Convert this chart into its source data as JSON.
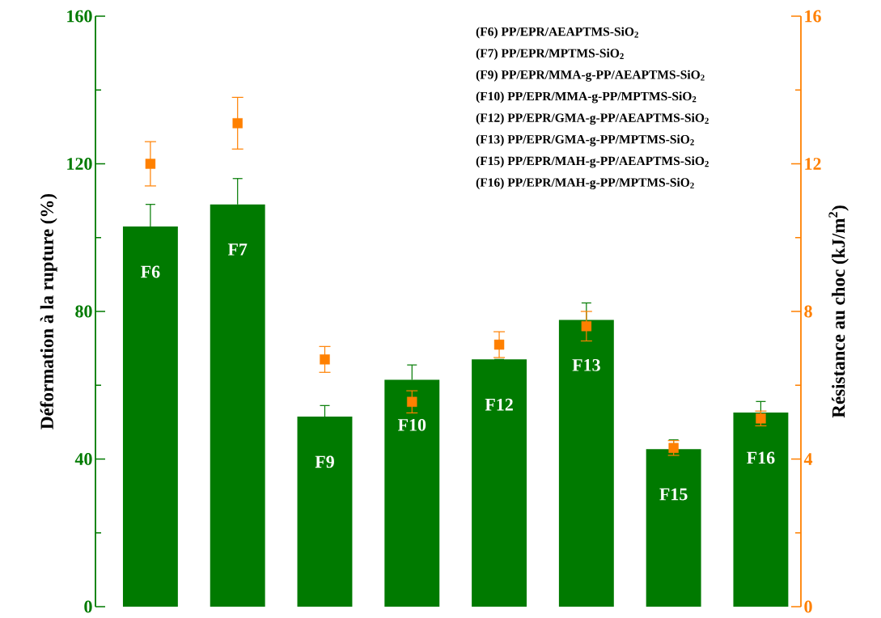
{
  "chart_data": {
    "type": "bar",
    "ylabel": "Déformation à la rupture  (%)",
    "y2label": "Résistance au choc (kJ/m$^{2}$)",
    "categories": [
      "F6",
      "F7",
      "F9",
      "F10",
      "F12",
      "F13",
      "F15",
      "F16"
    ],
    "ylim": [
      0,
      160
    ],
    "yticks": [
      0,
      40,
      80,
      120,
      160
    ],
    "y2lim": [
      0,
      16
    ],
    "y2ticks": [
      0,
      4,
      8,
      12,
      16
    ],
    "series": [
      {
        "color": "#007a00",
        "values": [
          103,
          109,
          51.5,
          61.5,
          67,
          77.7,
          42.7,
          52.6
        ],
        "errors": [
          6,
          7,
          3,
          4,
          null,
          4.6,
          2.5,
          3
        ]
      },
      {
        "type": "scatter",
        "axis": "y2",
        "marker": "square",
        "color": "#ff8000",
        "values": [
          12,
          13.1,
          6.7,
          5.55,
          7.1,
          7.6,
          4.3,
          5.1
        ],
        "errors": [
          0.6,
          0.7,
          0.35,
          0.3,
          0.35,
          0.4,
          0.2,
          0.2
        ]
      }
    ],
    "annotations": [
      "(F6)  PP/EPR/AEAPTMS-SiO$_{2}$",
      "(F7)  PP/EPR/MPTMS-SiO$_{2}$",
      "(F9)  PP/EPR/MMA-g-PP/AEAPTMS-SiO$_{2}$",
      "(F10)  PP/EPR/MMA-g-PP/MPTMS-SiO$_{2}$",
      "(F12)  PP/EPR/GMA-g-PP/AEAPTMS-SiO$_{2}$",
      "(F13)  PP/EPR/GMA-g-PP/MPTMS-SiO$_{2}$",
      "(F15)  PP/EPR/MAH-g-PP/AEAPTMS-SiO$_{2}$",
      "(F16) PP/EPR/MAH-g-PP/MPTMS-SiO$_{2}$"
    ]
  }
}
